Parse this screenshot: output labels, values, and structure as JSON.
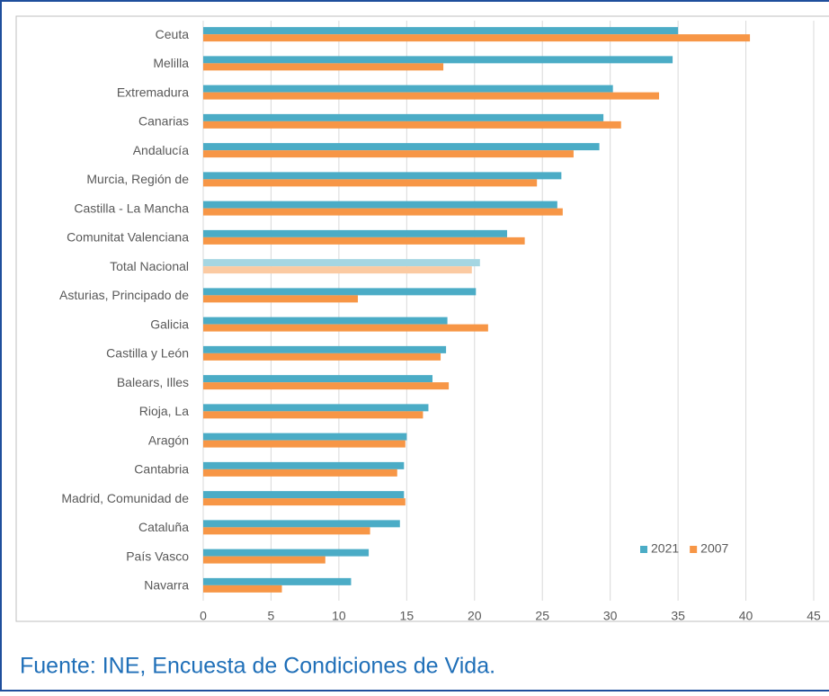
{
  "chart_data": {
    "type": "barh",
    "source": "Fuente: INE, Encuesta de Condiciones de Vida.",
    "categories": [
      "Ceuta",
      "Melilla",
      "Extremadura",
      "Canarias",
      "Andalucía",
      "Murcia, Región de",
      "Castilla - La Mancha",
      "Comunitat Valenciana",
      "Total Nacional",
      "Asturias, Principado de",
      "Galicia",
      "Castilla y León",
      "Balears, Illes",
      "Rioja, La",
      "Aragón",
      "Cantabria",
      "Madrid, Comunidad de",
      "Cataluña",
      "País Vasco",
      "Navarra"
    ],
    "series": [
      {
        "name": "2021",
        "color": "#4bacc6",
        "highlight_color": "#a5d6e2",
        "values": [
          35.0,
          34.6,
          30.2,
          29.5,
          29.2,
          26.4,
          26.1,
          22.4,
          20.4,
          20.1,
          18.0,
          17.9,
          16.9,
          16.6,
          15.0,
          14.8,
          14.8,
          14.5,
          12.2,
          10.9
        ]
      },
      {
        "name": "2007",
        "color": "#f79646",
        "highlight_color": "#fbcaa2",
        "values": [
          40.3,
          17.7,
          33.6,
          30.8,
          27.3,
          24.6,
          26.5,
          23.7,
          19.8,
          11.4,
          21.0,
          17.5,
          18.1,
          16.2,
          14.9,
          14.3,
          14.9,
          12.3,
          9.0,
          5.8
        ]
      }
    ],
    "highlight_category": "Total Nacional",
    "xlim": [
      0,
      45
    ],
    "xticks": [
      0,
      5,
      10,
      15,
      20,
      25,
      30,
      35,
      40,
      45
    ],
    "grid": true,
    "legend": "lower right"
  }
}
